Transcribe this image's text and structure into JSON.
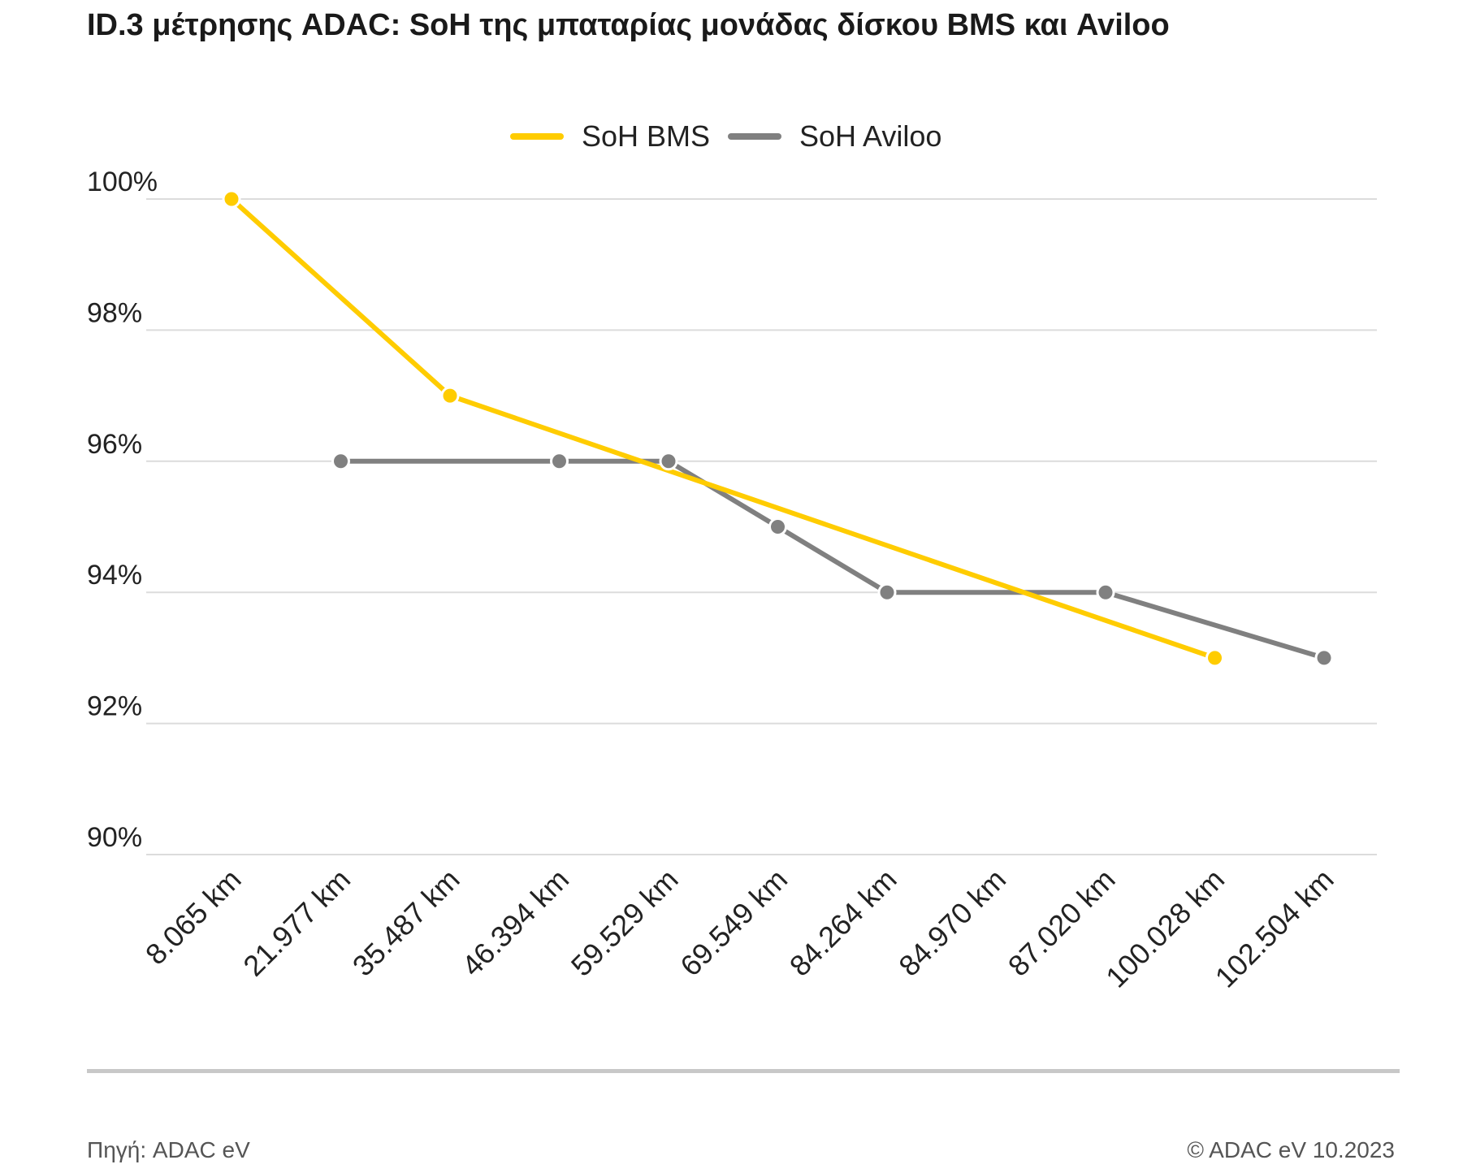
{
  "title": "ID.3 μέτρησης ADAC: SoH της μπαταρίας μονάδας δίσκου BMS και Aviloo",
  "footer": {
    "source": "Πηγή: ADAC eV",
    "copyright": "© ADAC eV 10.2023"
  },
  "chart_data": {
    "type": "line",
    "title": "ID.3 μέτρησης ADAC: SoH της μπαταρίας μονάδας δίσκου BMS και Aviloo",
    "xlabel": "",
    "ylabel": "",
    "categories": [
      "8.065 km",
      "21.977 km",
      "35.487 km",
      "46.394 km",
      "59.529 km",
      "69.549 km",
      "84.264 km",
      "84.970 km",
      "87.020 km",
      "100.028 km",
      "102.504 km"
    ],
    "y_ticks": [
      90,
      92,
      94,
      96,
      98,
      100
    ],
    "y_tick_labels": [
      "90%",
      "92%",
      "94%",
      "96%",
      "98%",
      "100%"
    ],
    "ylim": [
      90,
      100
    ],
    "grid": true,
    "legend_position": "top-center",
    "series": [
      {
        "name": "SoH BMS",
        "color": "#ffcc00",
        "values": [
          100,
          null,
          97,
          null,
          null,
          null,
          null,
          null,
          null,
          93,
          null
        ]
      },
      {
        "name": "SoH Aviloo",
        "color": "#808080",
        "values": [
          null,
          96,
          null,
          96,
          96,
          95,
          94,
          null,
          94,
          null,
          93
        ]
      }
    ]
  }
}
